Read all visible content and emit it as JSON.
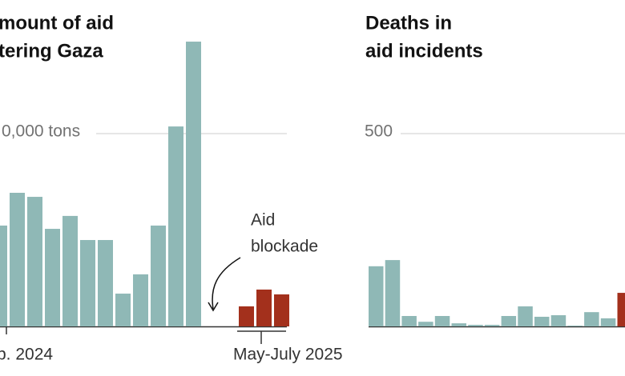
{
  "chart_data": [
    {
      "type": "bar",
      "title": [
        "mount of aid",
        "tering Gaza"
      ],
      "categories": [
        null,
        null,
        null,
        null,
        null,
        null,
        null,
        null,
        null,
        null,
        null,
        null,
        null,
        null,
        null,
        null,
        null
      ],
      "values": [
        52300,
        69300,
        67200,
        50600,
        57300,
        44800,
        44800,
        17000,
        27000,
        52300,
        103700,
        147700,
        null,
        null,
        10400,
        19100,
        16600
      ],
      "colors": [
        "#8fb8b6",
        "#8fb8b6",
        "#8fb8b6",
        "#8fb8b6",
        "#8fb8b6",
        "#8fb8b6",
        "#8fb8b6",
        "#8fb8b6",
        "#8fb8b6",
        "#8fb8b6",
        "#8fb8b6",
        "#8fb8b6",
        "#8fb8b6",
        "#8fb8b6",
        "#a3301c",
        "#a3301c",
        "#a3301c"
      ],
      "ylim": [
        0,
        150000
      ],
      "yticks": [
        {
          "value": 100000,
          "label": "0,000 tons"
        }
      ],
      "grid": true,
      "x_labels": [
        "b. 2024",
        "May-July 2025"
      ],
      "annotation": [
        "Aid",
        "blockade"
      ]
    },
    {
      "type": "bar",
      "title": [
        "Deaths in",
        "aid incidents"
      ],
      "categories": [
        null,
        null,
        null,
        null,
        null,
        null,
        null,
        null,
        null,
        null,
        null,
        null,
        null,
        null,
        null,
        null
      ],
      "values": [
        156,
        172,
        27,
        12,
        27,
        8,
        4,
        4,
        27,
        52,
        25,
        29,
        2,
        37,
        21,
        87
      ],
      "colors": [
        "#8fb8b6",
        "#8fb8b6",
        "#8fb8b6",
        "#8fb8b6",
        "#8fb8b6",
        "#8fb8b6",
        "#8fb8b6",
        "#8fb8b6",
        "#8fb8b6",
        "#8fb8b6",
        "#8fb8b6",
        "#8fb8b6",
        "#8fb8b6",
        "#8fb8b6",
        "#8fb8b6",
        "#a3301c"
      ],
      "ylim": [
        0,
        750
      ],
      "yticks": [
        500
      ],
      "grid": true
    }
  ]
}
